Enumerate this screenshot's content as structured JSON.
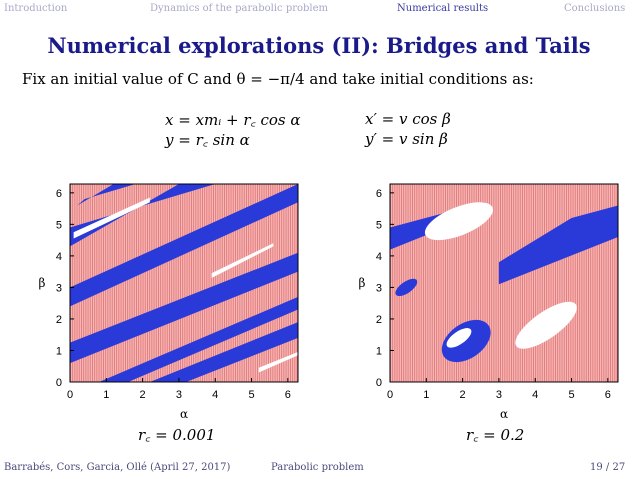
{
  "nav": {
    "items": [
      "Introduction",
      "Dynamics of the parabolic problem",
      "Numerical results",
      "Conclusions"
    ],
    "active_index": 2
  },
  "slide": {
    "title": "Numerical explorations (II): Bridges and Tails",
    "intro": "Fix an initial value of C and θ = −π/4 and take initial conditions as:",
    "equations": {
      "row1_left": "x  =  xmᵢ + r꜀ cos α",
      "row1_right": "x′  =  v cos β",
      "row2_left": "y  =  r꜀ sin α",
      "row2_right": "y′  =  v sin β"
    }
  },
  "chart_data": [
    {
      "type": "heatmap",
      "xlabel": "α",
      "ylabel": "β",
      "xlim": [
        0,
        6.28
      ],
      "ylim": [
        0,
        6.28
      ],
      "xticks": [
        "0",
        "1",
        "2",
        "3",
        "4",
        "5",
        "6"
      ],
      "yticks": [
        "0",
        "1",
        "2",
        "3",
        "4",
        "5",
        "6"
      ],
      "caption": "r꜀ = 0.001",
      "colors": {
        "background": "#f2b8b8",
        "stripe": "#e04040",
        "blue": "#2a3ad8",
        "white": "#ffffff"
      }
    },
    {
      "type": "heatmap",
      "xlabel": "α",
      "ylabel": "β",
      "xlim": [
        0,
        6.28
      ],
      "ylim": [
        0,
        6.28
      ],
      "xticks": [
        "0",
        "1",
        "2",
        "3",
        "4",
        "5",
        "6"
      ],
      "yticks": [
        "0",
        "1",
        "2",
        "3",
        "4",
        "5",
        "6"
      ],
      "caption": "r꜀ = 0.2",
      "colors": {
        "background": "#f2b8b8",
        "stripe": "#e04040",
        "blue": "#2a3ad8",
        "white": "#ffffff"
      }
    }
  ],
  "footer": {
    "authors": "Barrabés, Cors, Garcia, Ollé (April 27, 2017)",
    "short_title": "Parabolic problem",
    "page": "19 / 27"
  }
}
